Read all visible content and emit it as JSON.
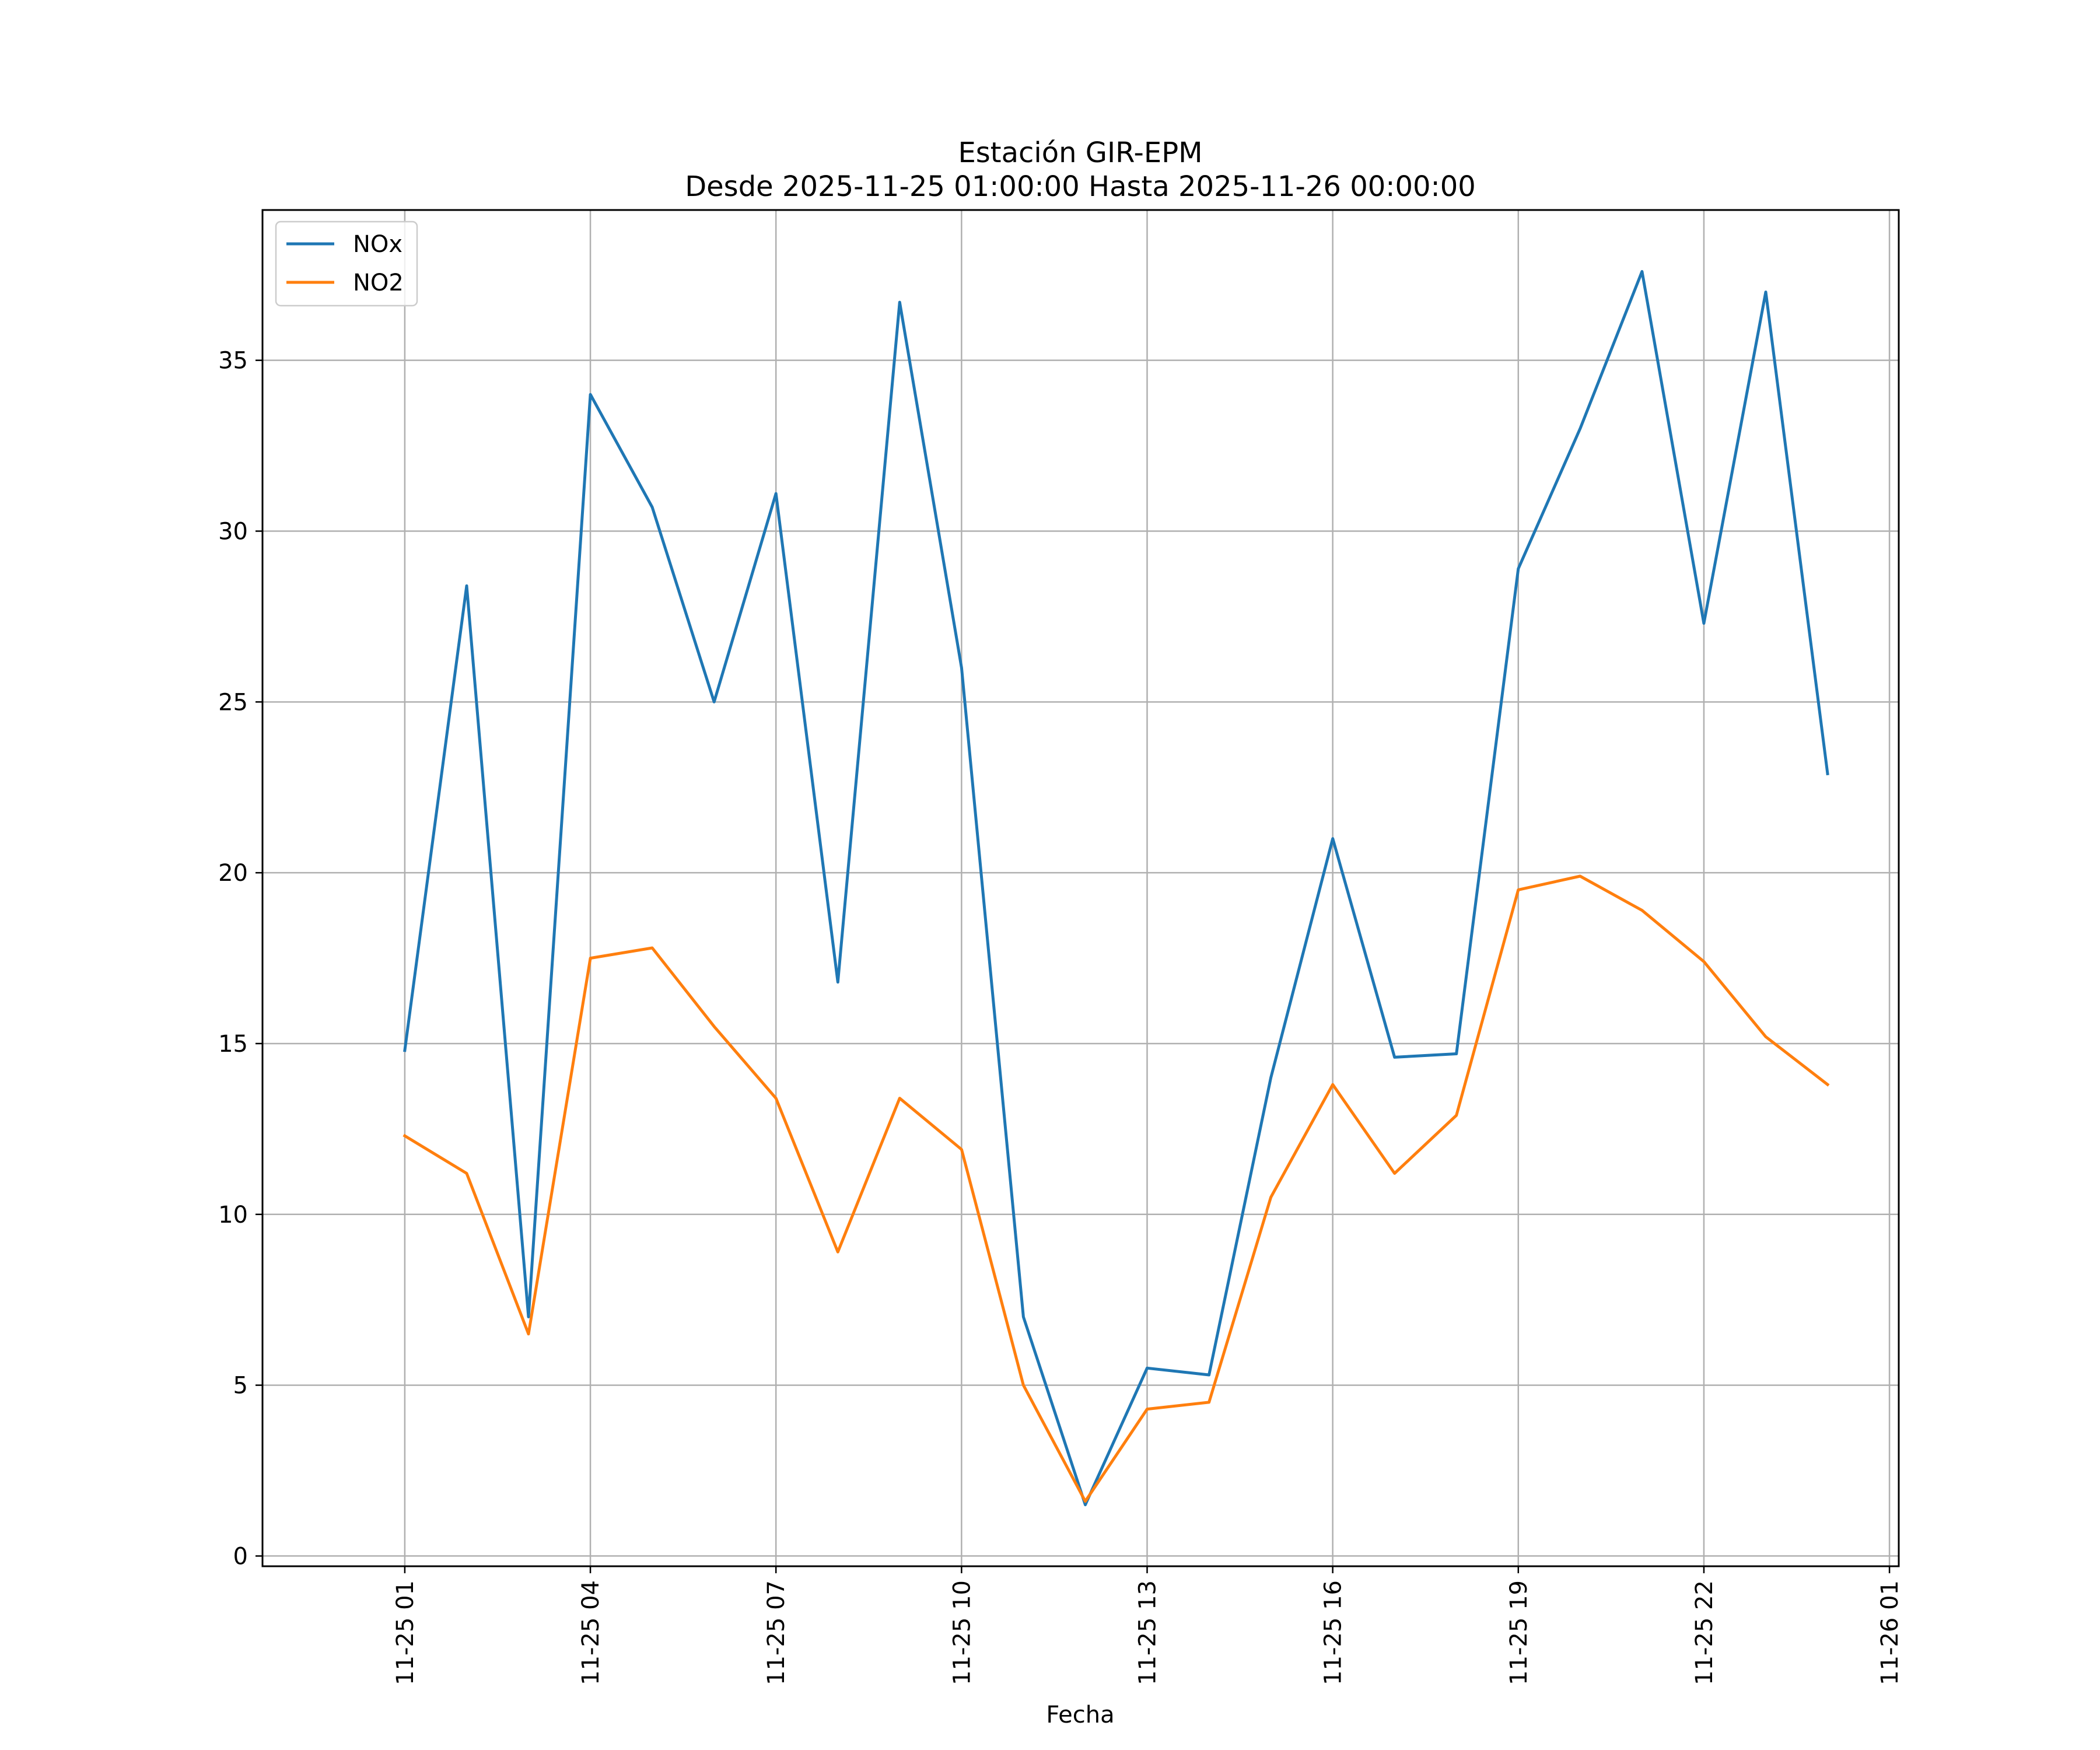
{
  "chart_data": {
    "type": "line",
    "title": "Estación GIR-EPM",
    "subtitle": "Desde 2025-11-25 01:00:00 Hasta 2025-11-26 00:00:00",
    "xlabel": "Fecha",
    "ylabel": "",
    "x": [
      "2025-11-25 01:00",
      "2025-11-25 02:00",
      "2025-11-25 03:00",
      "2025-11-25 04:00",
      "2025-11-25 05:00",
      "2025-11-25 06:00",
      "2025-11-25 07:00",
      "2025-11-25 08:00",
      "2025-11-25 09:00",
      "2025-11-25 10:00",
      "2025-11-25 11:00",
      "2025-11-25 12:00",
      "2025-11-25 13:00",
      "2025-11-25 14:00",
      "2025-11-25 15:00",
      "2025-11-25 16:00",
      "2025-11-25 17:00",
      "2025-11-25 18:00",
      "2025-11-25 19:00",
      "2025-11-25 20:00",
      "2025-11-25 21:00",
      "2025-11-25 22:00",
      "2025-11-25 23:00",
      "2025-11-26 00:00"
    ],
    "series": [
      {
        "name": "NOx",
        "color": "#1f77b4",
        "values": [
          14.8,
          28.4,
          7.0,
          34.0,
          30.7,
          25.0,
          31.1,
          16.8,
          36.7,
          26.0,
          7.0,
          1.5,
          5.5,
          5.3,
          14.0,
          21.0,
          14.6,
          14.7,
          28.9,
          33.0,
          37.6,
          27.3,
          37.0,
          22.9
        ]
      },
      {
        "name": "NO2",
        "color": "#ff7f0e",
        "values": [
          12.3,
          11.2,
          6.5,
          17.5,
          17.8,
          15.5,
          13.4,
          8.9,
          13.4,
          11.9,
          5.0,
          1.6,
          4.3,
          4.5,
          10.5,
          13.8,
          11.2,
          12.9,
          19.5,
          19.9,
          18.9,
          17.4,
          15.2,
          13.8
        ]
      }
    ],
    "xticks": [
      "11-25 01",
      "11-25 04",
      "11-25 07",
      "11-25 10",
      "11-25 13",
      "11-25 16",
      "11-25 19",
      "11-25 22",
      "11-26 01"
    ],
    "yticks": [
      "0",
      "5",
      "10",
      "15",
      "20",
      "25",
      "30",
      "35"
    ],
    "xlim": [
      "2025-11-24 22:42",
      "2025-11-26 01:09"
    ],
    "ylim": [
      -0.3,
      39.4
    ],
    "grid": true,
    "legend_position": "upper left"
  }
}
